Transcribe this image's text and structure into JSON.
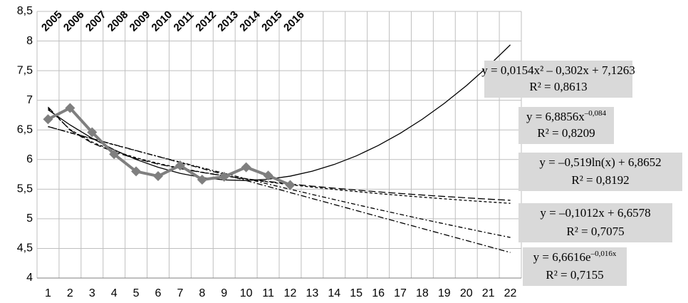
{
  "chart_data": {
    "type": "line",
    "categories": [
      "1",
      "2",
      "3",
      "4",
      "5",
      "6",
      "7",
      "8",
      "9",
      "10",
      "11",
      "12",
      "13",
      "14",
      "15",
      "16",
      "17",
      "18",
      "19",
      "20",
      "21",
      "22"
    ],
    "year_labels": [
      "2005",
      "2006",
      "2007",
      "2008",
      "2009",
      "2010",
      "2011",
      "2012",
      "2013",
      "2014",
      "2015",
      "2016"
    ],
    "ylim": [
      4,
      8.5
    ],
    "yticks": [
      4,
      {
        "value": 4.5,
        "label": "4,5"
      },
      5,
      {
        "value": 5.5,
        "label": "5,5"
      },
      6,
      {
        "value": 6.5,
        "label": "6,5"
      },
      7,
      {
        "value": 7.5,
        "label": "7,5"
      },
      8,
      {
        "value": 8.5,
        "label": "8,5"
      }
    ],
    "grid": true,
    "series": [
      {
        "color": "#7f7f7f",
        "style": "data",
        "values": [
          6.68,
          6.87,
          6.46,
          6.09,
          5.8,
          5.72,
          5.9,
          5.66,
          5.71,
          5.87,
          5.73,
          5.57,
          null,
          null,
          null,
          null,
          null,
          null,
          null,
          null,
          null,
          null
        ]
      },
      {
        "color": "#000000",
        "style": "solid",
        "values": [
          6.84,
          6.584,
          6.359,
          6.165,
          6.001,
          5.869,
          5.767,
          5.696,
          5.656,
          5.646,
          5.668,
          5.72,
          5.803,
          5.917,
          6.061,
          6.237,
          6.443,
          6.68,
          6.948,
          7.246,
          7.576,
          7.936
        ]
      },
      {
        "color": "#000000",
        "style": "longdash",
        "values": [
          6.886,
          6.497,
          6.278,
          6.129,
          6.015,
          5.924,
          5.847,
          5.782,
          5.725,
          5.675,
          5.63,
          5.588,
          5.551,
          5.517,
          5.485,
          5.455,
          5.427,
          5.401,
          5.377,
          5.354,
          5.332,
          5.312
        ]
      },
      {
        "color": "#000000",
        "style": "dash",
        "values": [
          6.865,
          6.506,
          6.295,
          6.146,
          6.03,
          5.935,
          5.855,
          5.786,
          5.725,
          5.67,
          5.621,
          5.576,
          5.534,
          5.496,
          5.46,
          5.426,
          5.395,
          5.365,
          5.337,
          5.31,
          5.285,
          5.261
        ]
      },
      {
        "color": "#000000",
        "style": "dashdot",
        "values": [
          6.557,
          6.455,
          6.354,
          6.253,
          6.152,
          6.05,
          5.949,
          5.848,
          5.747,
          5.646,
          5.544,
          5.443,
          5.342,
          5.241,
          5.14,
          5.038,
          4.937,
          4.836,
          4.735,
          4.634,
          4.533,
          4.431
        ]
      },
      {
        "color": "#000000",
        "style": "dotdash",
        "values": [
          6.556,
          6.452,
          6.349,
          6.249,
          6.149,
          6.052,
          5.956,
          5.861,
          5.768,
          5.676,
          5.586,
          5.498,
          5.411,
          5.325,
          5.24,
          5.157,
          5.075,
          4.994,
          4.915,
          4.837,
          4.76,
          4.685
        ]
      }
    ],
    "annotations": [
      {
        "text": "y = 0,0154x² – 0,302x + 7,1263",
        "r2": "R² = 0,8613"
      },
      {
        "text": "y = 6,8856x",
        "sup": "–0,084",
        "r2": "R² = 0,8209"
      },
      {
        "text": "y = –0,519ln(x) + 6,8652",
        "r2": "R² = 0,8192"
      },
      {
        "text": "y = –0,1012x + 6,6578",
        "r2": "R² = 0,7075"
      },
      {
        "text": "y = 6,6616e",
        "sup": "–0,016x",
        "r2": "R² = 0,7155"
      }
    ]
  }
}
